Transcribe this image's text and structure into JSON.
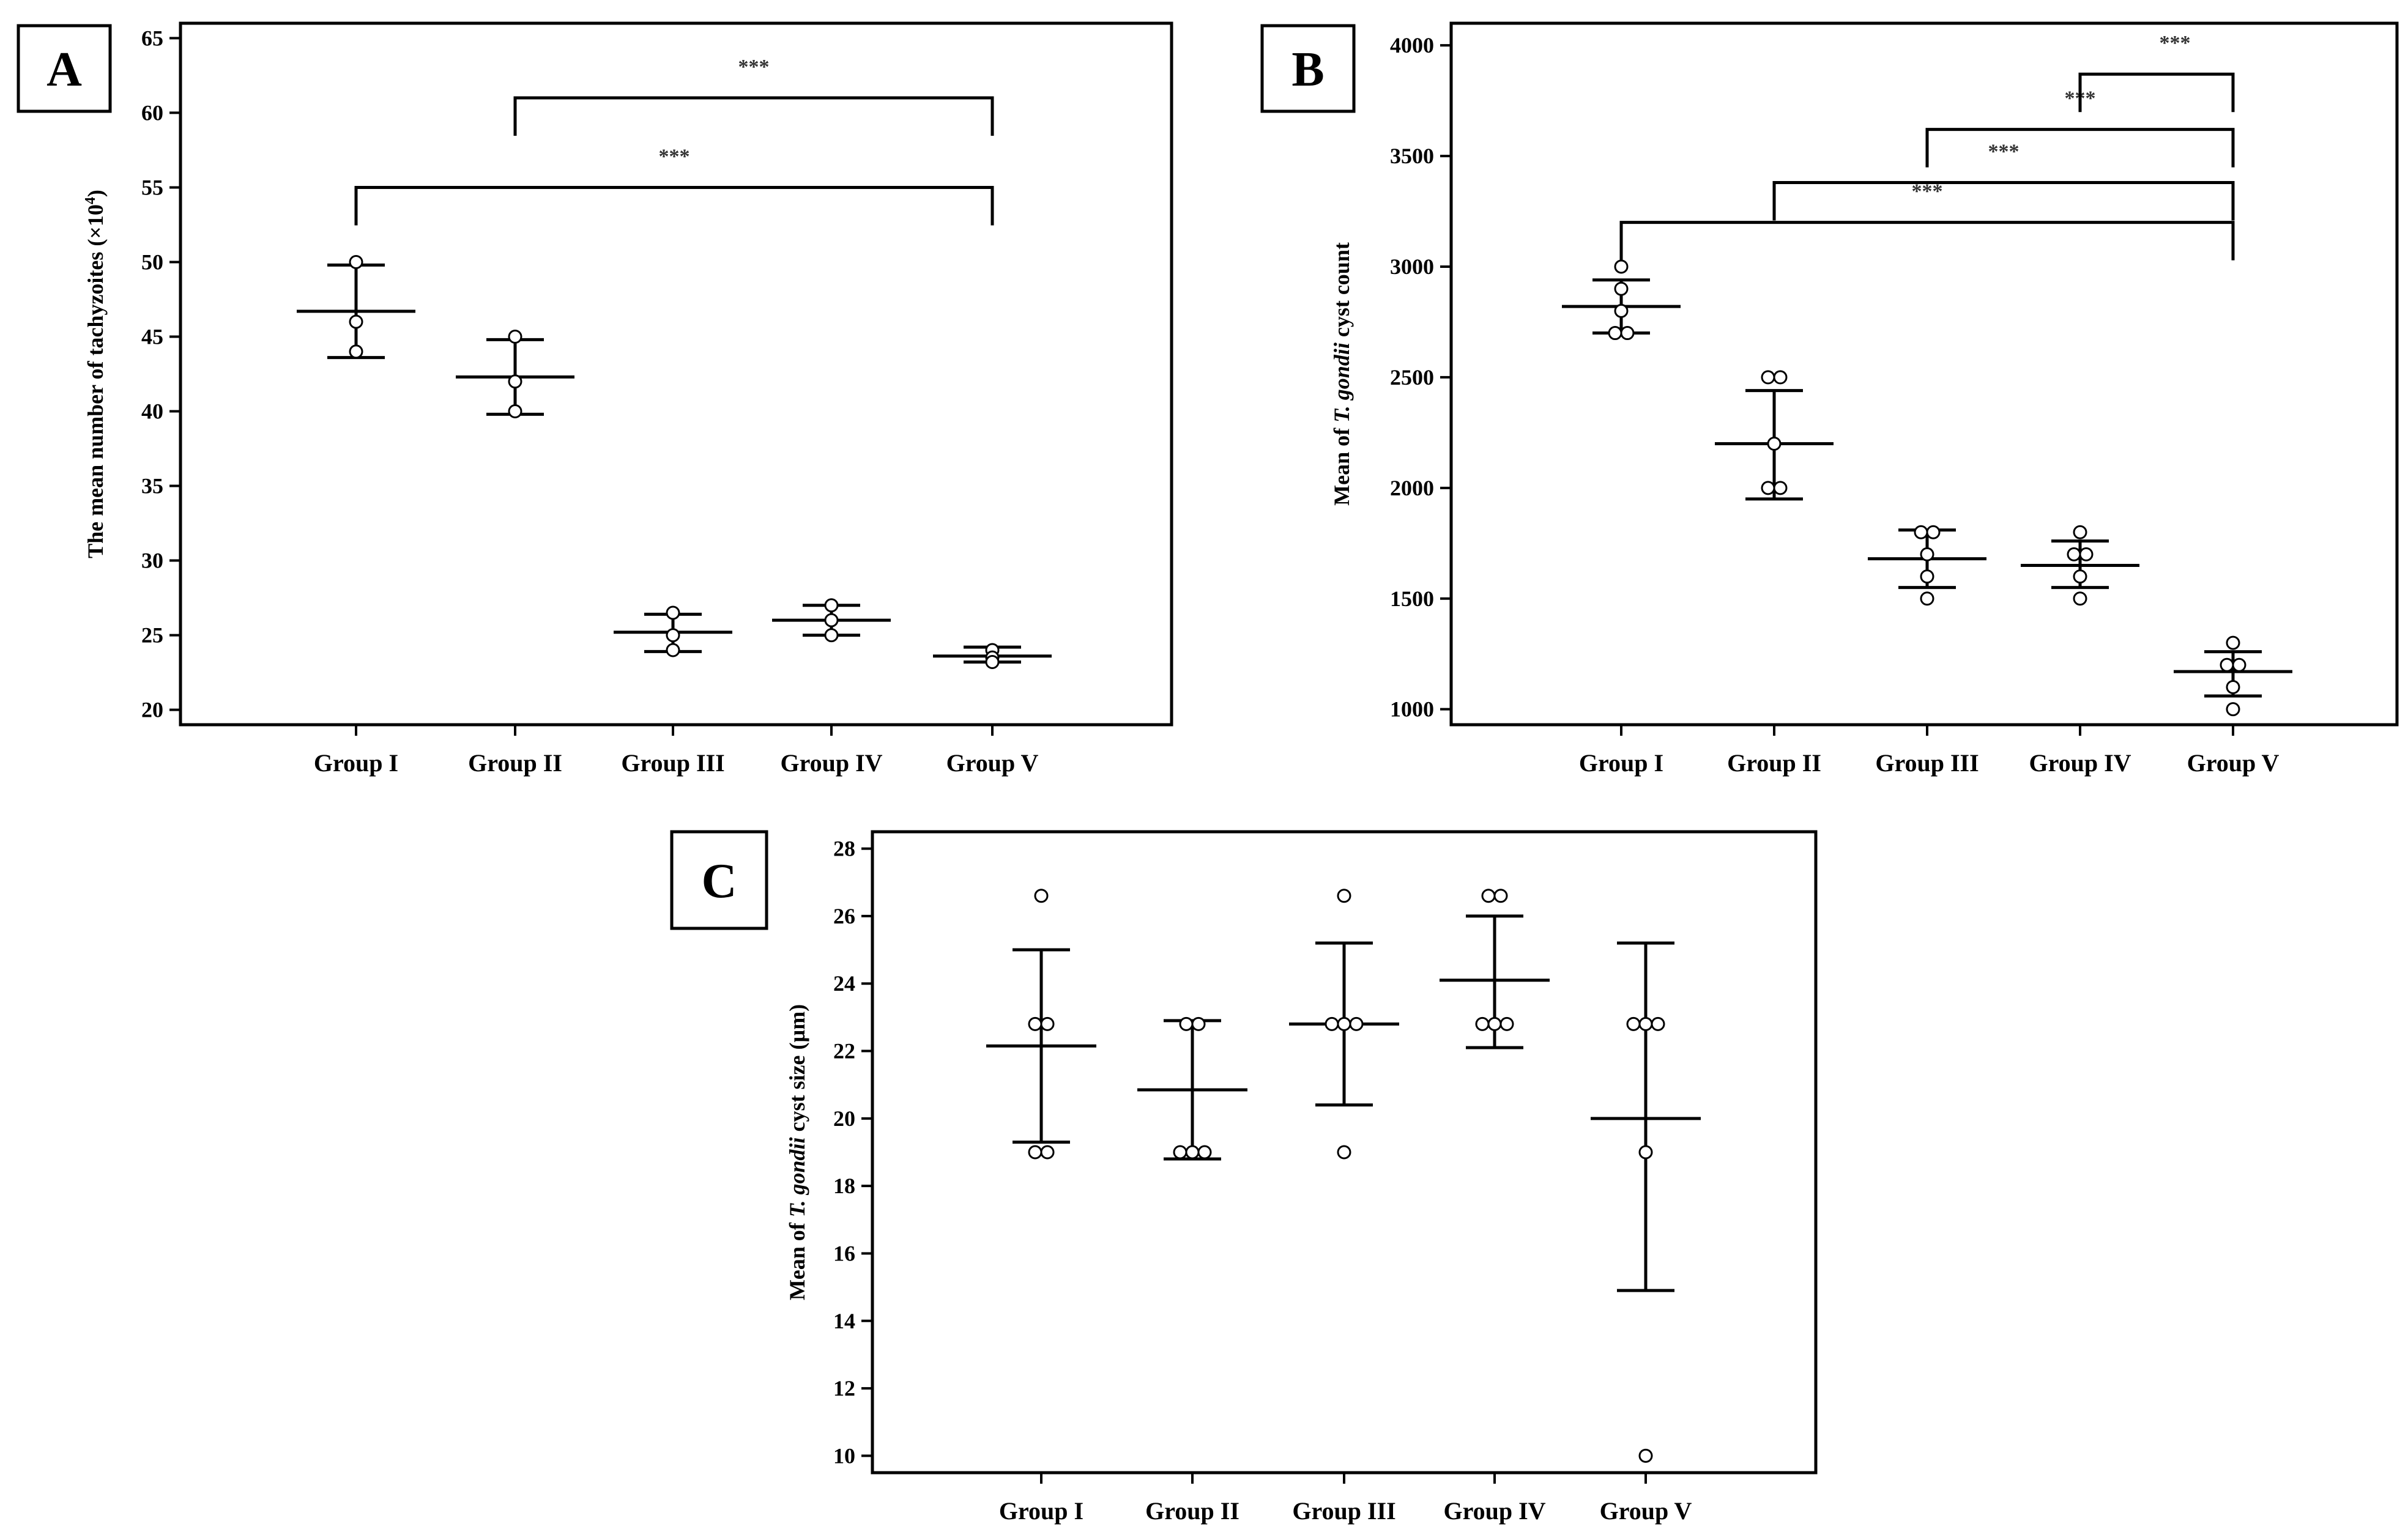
{
  "chart_data": [
    {
      "panel": "A",
      "type": "scatter",
      "ylabel_prefix": "The mean number of tachyzoites (×10",
      "ylabel_sup": "4",
      "ylabel_suffix": ")",
      "categories": [
        "Group I",
        "Group II",
        "Group III",
        "Group IV",
        "Group V"
      ],
      "yticks": [
        20,
        25,
        30,
        35,
        40,
        45,
        50,
        55,
        60,
        65
      ],
      "ylim": [
        19,
        66
      ],
      "series": [
        {
          "name": "Group I",
          "points": [
            50,
            46,
            44
          ],
          "mean": 46.7,
          "sd_low": 43.6,
          "sd_high": 49.8
        },
        {
          "name": "Group II",
          "points": [
            45,
            42,
            40
          ],
          "mean": 42.3,
          "sd_low": 39.8,
          "sd_high": 44.8
        },
        {
          "name": "Group III",
          "points": [
            26.5,
            25,
            24
          ],
          "mean": 25.2,
          "sd_low": 23.9,
          "sd_high": 26.4
        },
        {
          "name": "Group IV",
          "points": [
            27,
            26,
            25
          ],
          "mean": 26.0,
          "sd_low": 25.0,
          "sd_high": 27.0
        },
        {
          "name": "Group V",
          "points": [
            24,
            23.5,
            23.2
          ],
          "mean": 23.6,
          "sd_low": 23.2,
          "sd_high": 24.2
        }
      ],
      "significance": [
        {
          "from": "Group I",
          "to": "Group V",
          "level": 55,
          "label": "***"
        },
        {
          "from": "Group II",
          "to": "Group V",
          "level": 61,
          "label": "***"
        }
      ]
    },
    {
      "panel": "B",
      "type": "scatter",
      "ylabel_prefix": "Mean of ",
      "ylabel_italic": "T. gondii",
      "ylabel_suffix": " cyst count",
      "categories": [
        "Group I",
        "Group II",
        "Group III",
        "Group IV",
        "Group V"
      ],
      "yticks": [
        1000,
        1500,
        2000,
        2500,
        3000,
        3500,
        4000
      ],
      "ylim": [
        930,
        4100
      ],
      "series": [
        {
          "name": "Group I",
          "points": [
            3000,
            2900,
            2800,
            2700,
            2700
          ],
          "mean": 2820,
          "sd_low": 2700,
          "sd_high": 2940
        },
        {
          "name": "Group II",
          "points": [
            2500,
            2500,
            2200,
            2000,
            2000
          ],
          "mean": 2200,
          "sd_low": 1950,
          "sd_high": 2440
        },
        {
          "name": "Group III",
          "points": [
            1800,
            1800,
            1700,
            1600,
            1500
          ],
          "mean": 1680,
          "sd_low": 1550,
          "sd_high": 1810
        },
        {
          "name": "Group IV",
          "points": [
            1800,
            1700,
            1700,
            1600,
            1500
          ],
          "mean": 1650,
          "sd_low": 1550,
          "sd_high": 1760
        },
        {
          "name": "Group V",
          "points": [
            1300,
            1200,
            1200,
            1100,
            1000
          ],
          "mean": 1170,
          "sd_low": 1060,
          "sd_high": 1260
        }
      ],
      "significance": [
        {
          "from": "Group I",
          "to": "Group V",
          "level": 3200,
          "label": "***"
        },
        {
          "from": "Group II",
          "to": "Group V",
          "level": 3380,
          "label": "***"
        },
        {
          "from": "Group III",
          "to": "Group V",
          "level": 3620,
          "label": "***"
        },
        {
          "from": "Group IV",
          "to": "Group V",
          "level": 3870,
          "label": "***"
        }
      ]
    },
    {
      "panel": "C",
      "type": "scatter",
      "ylabel_prefix": "Mean of ",
      "ylabel_italic": "T. gondii",
      "ylabel_suffix": " cyst size (µm)",
      "categories": [
        "Group I",
        "Group II",
        "Group III",
        "Group IV",
        "Group V"
      ],
      "yticks": [
        10,
        12,
        14,
        16,
        18,
        20,
        22,
        24,
        26,
        28
      ],
      "ylim": [
        9.5,
        28.5
      ],
      "series": [
        {
          "name": "Group I",
          "points": [
            26.6,
            22.8,
            22.8,
            19,
            19
          ],
          "mean": 22.15,
          "sd_low": 19.3,
          "sd_high": 25.0
        },
        {
          "name": "Group II",
          "points": [
            22.8,
            22.8,
            19,
            19,
            19
          ],
          "mean": 20.85,
          "sd_low": 18.8,
          "sd_high": 22.9
        },
        {
          "name": "Group III",
          "points": [
            26.6,
            22.8,
            22.8,
            22.8,
            19
          ],
          "mean": 22.8,
          "sd_low": 20.4,
          "sd_high": 25.2
        },
        {
          "name": "Group IV",
          "points": [
            26.6,
            26.6,
            22.8,
            22.8,
            22.8
          ],
          "mean": 24.1,
          "sd_low": 22.1,
          "sd_high": 26.0
        },
        {
          "name": "Group V",
          "points": [
            22.8,
            22.8,
            22.8,
            19,
            10
          ],
          "mean": 20.0,
          "sd_low": 14.9,
          "sd_high": 25.2
        }
      ],
      "significance": []
    }
  ]
}
